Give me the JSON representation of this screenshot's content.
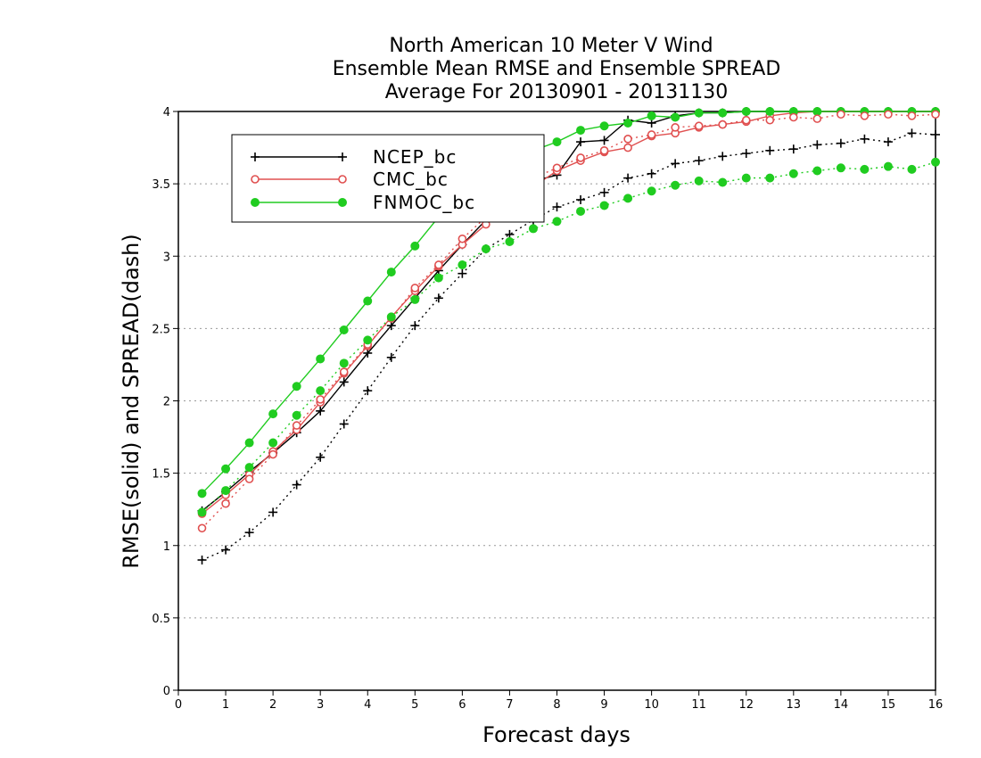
{
  "chart_data": {
    "type": "line",
    "title": [
      "North American 10 Meter V Wind",
      "Ensemble Mean RMSE and Ensemble SPREAD",
      "Average For 20130901 - 20131130"
    ],
    "xlabel": "Forecast days",
    "ylabel": "RMSE(solid) and SPREAD(dash)",
    "xlim": [
      0,
      16
    ],
    "ylim": [
      0,
      4
    ],
    "xticks": [
      "0",
      "1",
      "2",
      "3",
      "4",
      "5",
      "6",
      "7",
      "8",
      "9",
      "10",
      "11",
      "12",
      "13",
      "14",
      "15",
      "16"
    ],
    "yticks": [
      "0",
      "0.5",
      "1",
      "1.5",
      "2",
      "2.5",
      "3",
      "3.5",
      "4"
    ],
    "grid": "horizontal dotted",
    "legend_position": "top-left",
    "x": [
      0.5,
      1,
      1.5,
      2,
      2.5,
      3,
      3.5,
      4,
      4.5,
      5,
      5.5,
      6,
      6.5,
      7,
      7.5,
      8,
      8.5,
      9,
      9.5,
      10,
      10.5,
      11,
      11.5,
      12,
      12.5,
      13,
      13.5,
      14,
      14.5,
      15,
      15.5,
      16
    ],
    "series": [
      {
        "name": "NCEP_bc",
        "metric": "RMSE",
        "style": "solid",
        "marker": "plus",
        "color": "#000000",
        "values": [
          1.24,
          1.37,
          1.51,
          1.64,
          1.78,
          1.93,
          2.13,
          2.33,
          2.52,
          2.71,
          2.9,
          3.08,
          3.25,
          3.4,
          3.52,
          3.56,
          3.79,
          3.8,
          3.94,
          3.92,
          3.97,
          3.99,
          3.99,
          4.0,
          4.0,
          4.0,
          4.0,
          4.0,
          4.0,
          4.0,
          4.0,
          4.0
        ]
      },
      {
        "name": "CMC_bc",
        "metric": "RMSE",
        "style": "solid",
        "marker": "open-circle",
        "color": "#e05050",
        "values": [
          1.22,
          1.35,
          1.49,
          1.65,
          1.8,
          1.99,
          2.19,
          2.38,
          2.58,
          2.76,
          2.93,
          3.08,
          3.22,
          3.37,
          3.48,
          3.59,
          3.66,
          3.72,
          3.75,
          3.83,
          3.85,
          3.89,
          3.91,
          3.93,
          3.97,
          3.99,
          4.0,
          4.0,
          4.0,
          4.0,
          4.0,
          4.0
        ]
      },
      {
        "name": "FNMOC_bc",
        "metric": "RMSE",
        "style": "solid",
        "marker": "filled-circle",
        "color": "#20cc20",
        "values": [
          1.36,
          1.53,
          1.71,
          1.91,
          2.1,
          2.29,
          2.49,
          2.69,
          2.89,
          3.07,
          3.27,
          3.43,
          3.58,
          3.7,
          3.73,
          3.79,
          3.87,
          3.9,
          3.92,
          3.97,
          3.96,
          3.99,
          3.99,
          4.0,
          4.0,
          4.0,
          4.0,
          4.0,
          4.0,
          4.0,
          4.0,
          4.0
        ]
      },
      {
        "name": "NCEP_bc",
        "metric": "SPREAD",
        "style": "dash",
        "marker": "plus",
        "color": "#000000",
        "values": [
          0.9,
          0.97,
          1.09,
          1.23,
          1.42,
          1.61,
          1.84,
          2.07,
          2.3,
          2.52,
          2.71,
          2.88,
          3.05,
          3.15,
          3.25,
          3.34,
          3.39,
          3.44,
          3.54,
          3.57,
          3.64,
          3.66,
          3.69,
          3.71,
          3.73,
          3.74,
          3.77,
          3.78,
          3.81,
          3.79,
          3.85,
          3.84
        ]
      },
      {
        "name": "CMC_bc",
        "metric": "SPREAD",
        "style": "dash",
        "marker": "open-circle",
        "color": "#e05050",
        "values": [
          1.12,
          1.29,
          1.46,
          1.63,
          1.83,
          2.01,
          2.2,
          2.39,
          2.57,
          2.78,
          2.94,
          3.12,
          3.27,
          3.43,
          3.54,
          3.61,
          3.68,
          3.73,
          3.81,
          3.84,
          3.89,
          3.9,
          3.91,
          3.94,
          3.94,
          3.96,
          3.95,
          3.98,
          3.97,
          3.98,
          3.97,
          3.98
        ]
      },
      {
        "name": "FNMOC_bc",
        "metric": "SPREAD",
        "style": "dash",
        "marker": "filled-circle",
        "color": "#20cc20",
        "values": [
          1.23,
          1.38,
          1.54,
          1.71,
          1.9,
          2.07,
          2.26,
          2.42,
          2.58,
          2.7,
          2.85,
          2.94,
          3.05,
          3.1,
          3.19,
          3.24,
          3.31,
          3.35,
          3.4,
          3.45,
          3.49,
          3.52,
          3.51,
          3.54,
          3.54,
          3.57,
          3.59,
          3.61,
          3.6,
          3.62,
          3.6,
          3.65
        ]
      }
    ],
    "legend": [
      {
        "name": "NCEP_bc",
        "marker": "plus",
        "color": "#000000"
      },
      {
        "name": "CMC_bc",
        "marker": "open-circle",
        "color": "#e05050"
      },
      {
        "name": "FNMOC_bc",
        "marker": "filled-circle",
        "color": "#20cc20"
      }
    ]
  }
}
